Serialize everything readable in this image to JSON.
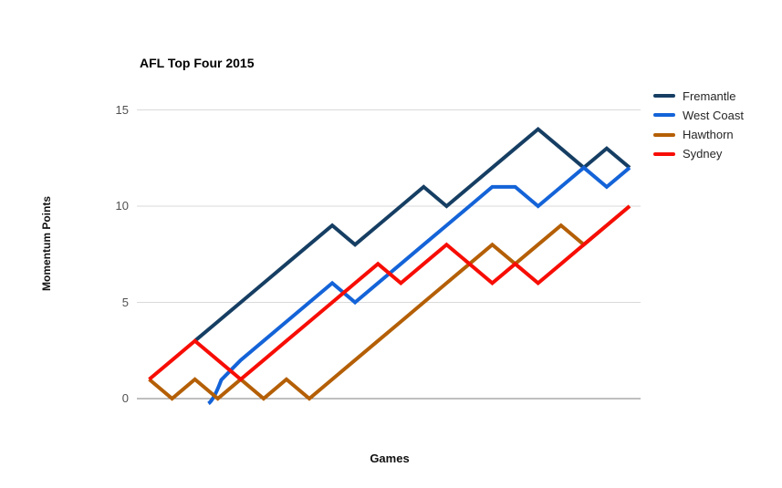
{
  "chart_data": {
    "type": "line",
    "title": "AFL Top Four 2015",
    "xlabel": "Games",
    "ylabel": "Momentum Points",
    "x_unit": "game number (1-22), no x tick labels shown",
    "ylim": [
      0,
      15
    ],
    "yticks": [
      0,
      5,
      10,
      15
    ],
    "grid": "horizontal gridlines at y ticks, darker baseline at 0",
    "legend_position": "right of plot, top",
    "notes": "All series move in whole momentum points per game. West Coast's line begins with a small curved tail rising from 0. Hawthorn's line is hidden beneath Sydney's identical values for the last two games.",
    "series": [
      {
        "name": "Fremantle",
        "color": "#163E63",
        "start_game": 3,
        "values": [
          3,
          4,
          5,
          6,
          7,
          8,
          9,
          8,
          9,
          10,
          11,
          10,
          11,
          12,
          13,
          14,
          13,
          12,
          13,
          12
        ]
      },
      {
        "name": "West Coast",
        "color": "#1463D8",
        "start_game": 3,
        "curved_start": true,
        "values": [
          0,
          1,
          2,
          3,
          4,
          5,
          6,
          5,
          6,
          7,
          8,
          9,
          10,
          11,
          11,
          10,
          11,
          12,
          11,
          12
        ]
      },
      {
        "name": "Hawthorn",
        "color": "#B45F06",
        "start_game": 1,
        "values": [
          1,
          0,
          1,
          0,
          1,
          0,
          1,
          0,
          1,
          2,
          3,
          4,
          5,
          6,
          7,
          8,
          7,
          8,
          9,
          8,
          9,
          10
        ]
      },
      {
        "name": "Sydney",
        "color": "#F70D05",
        "start_game": 1,
        "values": [
          1,
          2,
          3,
          2,
          1,
          2,
          3,
          4,
          5,
          6,
          7,
          6,
          7,
          8,
          7,
          6,
          7,
          6,
          7,
          8,
          9,
          10
        ]
      }
    ]
  }
}
